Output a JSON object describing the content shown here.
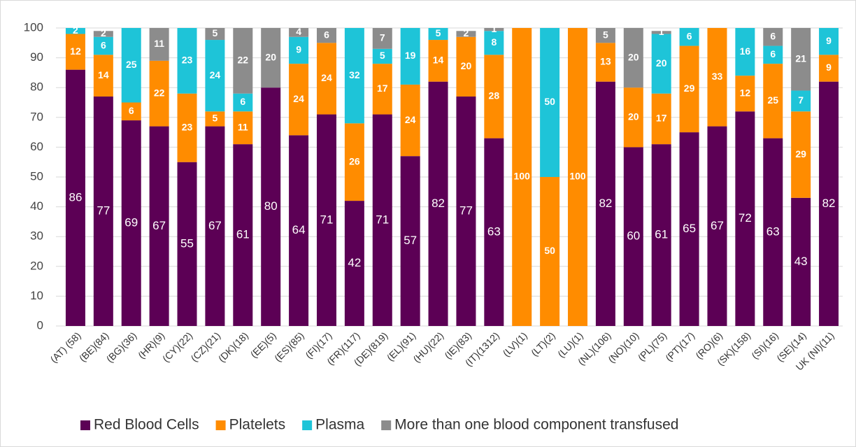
{
  "chart_data": {
    "type": "stacked_bar",
    "categories": [
      "(AT) (58)",
      "(BE)(84)",
      "(BG)(36)",
      "(HR)(9)",
      "(CY)(22)",
      "(CZ)(21)",
      "(DK)(18)",
      "(EE)(5)",
      "(ES)(85)",
      "(FI)(17)",
      "(FR)(117)",
      "(DE)(819)",
      "(EL)(91)",
      "(HU)(22)",
      "(IE)(83)",
      "(IT)(1312)",
      "(LV)(1)",
      "(LT)(2)",
      "(LU)(1)",
      "(NL)(106)",
      "(NO)(10)",
      "(PL)(75)",
      "(PT)(17)",
      "(RO)(6)",
      "(SK)(158)",
      "(SI)(16)",
      "(SE)(14)",
      "UK (NI)(11)"
    ],
    "series": [
      {
        "name": "Red Blood Cells",
        "color": "#5c0055",
        "values": [
          86,
          77,
          69,
          67,
          55,
          67,
          61,
          80,
          64,
          71,
          42,
          71,
          57,
          82,
          77,
          63,
          null,
          null,
          null,
          82,
          60,
          61,
          65,
          67,
          72,
          63,
          43,
          82
        ]
      },
      {
        "name": "Platelets",
        "color": "#ff8c00",
        "values": [
          12,
          14,
          6,
          22,
          23,
          5,
          11,
          null,
          24,
          24,
          26,
          17,
          24,
          14,
          20,
          28,
          100,
          50,
          100,
          13,
          20,
          17,
          29,
          33,
          12,
          25,
          29,
          9
        ]
      },
      {
        "name": "Plasma",
        "color": "#1ec4d8",
        "values": [
          2,
          6,
          25,
          null,
          23,
          24,
          6,
          null,
          9,
          null,
          32,
          5,
          19,
          5,
          null,
          8,
          null,
          50,
          null,
          null,
          null,
          20,
          6,
          null,
          16,
          6,
          7,
          9
        ]
      },
      {
        "name": "More than one blood component transfused",
        "color": "#8c8c8c",
        "values": [
          null,
          2,
          null,
          11,
          null,
          5,
          22,
          20,
          4,
          6,
          null,
          7,
          null,
          null,
          2,
          1,
          null,
          null,
          null,
          5,
          20,
          1,
          null,
          null,
          null,
          6,
          21,
          null
        ]
      }
    ],
    "ylim": [
      0,
      100
    ],
    "yticks": [
      0,
      10,
      20,
      30,
      40,
      50,
      60,
      70,
      80,
      90,
      100
    ],
    "grid": true,
    "legend": "bottom"
  }
}
